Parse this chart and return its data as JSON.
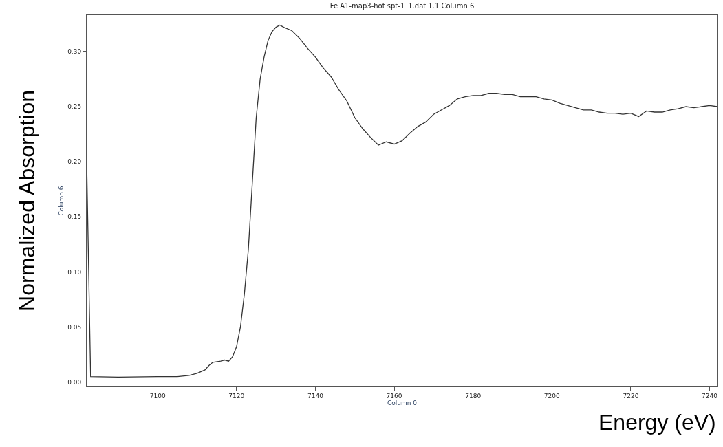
{
  "chart_data": {
    "type": "line",
    "title": "Fe A1-map3-hot spt-1_1.dat 1.1 Column 6",
    "xlabel": "Column 0",
    "ylabel": "Column 6",
    "annotations": [
      "Normalized Absorption",
      "Energy (eV)"
    ],
    "xlim": [
      7082,
      7242
    ],
    "xticks": [
      7100,
      7120,
      7140,
      7160,
      7180,
      7200,
      7220,
      7240
    ],
    "ylim": [
      -0.004,
      0.333
    ],
    "yticks": [
      {
        "value": 0,
        "label": "0.00"
      },
      0.05,
      {
        "value": 0.1,
        "label": "0.10"
      },
      0.15,
      {
        "value": 0.2,
        "label": "0.20"
      },
      0.25,
      {
        "value": 0.3,
        "label": "0.30"
      }
    ],
    "marker": "none",
    "line_style": "solid",
    "series": [
      {
        "color": "#333333",
        "x": [
          7082,
          7083,
          7090,
          7100,
          7105,
          7108,
          7110,
          7112,
          7113,
          7114,
          7116,
          7117,
          7118,
          7119,
          7120,
          7121,
          7122,
          7123,
          7124,
          7125,
          7126,
          7127,
          7128,
          7129,
          7130,
          7131,
          7132,
          7134,
          7136,
          7138,
          7140,
          7142,
          7144,
          7146,
          7148,
          7150,
          7152,
          7154,
          7156,
          7158,
          7160,
          7162,
          7164,
          7166,
          7168,
          7170,
          7172,
          7174,
          7176,
          7178,
          7180,
          7182,
          7184,
          7186,
          7188,
          7190,
          7192,
          7194,
          7196,
          7198,
          7200,
          7202,
          7204,
          7206,
          7208,
          7210,
          7212,
          7214,
          7216,
          7218,
          7220,
          7222,
          7224,
          7226,
          7228,
          7230,
          7232,
          7234,
          7236,
          7238,
          7240,
          7242
        ],
        "values": [
          0.2,
          0.005,
          0.0045,
          0.005,
          0.005,
          0.006,
          0.008,
          0.011,
          0.015,
          0.018,
          0.019,
          0.02,
          0.019,
          0.023,
          0.032,
          0.05,
          0.08,
          0.12,
          0.18,
          0.24,
          0.275,
          0.295,
          0.31,
          0.318,
          0.322,
          0.324,
          0.322,
          0.319,
          0.312,
          0.303,
          0.295,
          0.285,
          0.277,
          0.265,
          0.255,
          0.24,
          0.23,
          0.222,
          0.215,
          0.218,
          0.216,
          0.219,
          0.226,
          0.232,
          0.236,
          0.243,
          0.247,
          0.251,
          0.257,
          0.259,
          0.26,
          0.26,
          0.262,
          0.262,
          0.261,
          0.261,
          0.259,
          0.259,
          0.259,
          0.257,
          0.256,
          0.253,
          0.251,
          0.249,
          0.247,
          0.247,
          0.245,
          0.244,
          0.244,
          0.243,
          0.244,
          0.241,
          0.246,
          0.245,
          0.245,
          0.247,
          0.248,
          0.25,
          0.249,
          0.25,
          0.251,
          0.25
        ]
      }
    ]
  }
}
